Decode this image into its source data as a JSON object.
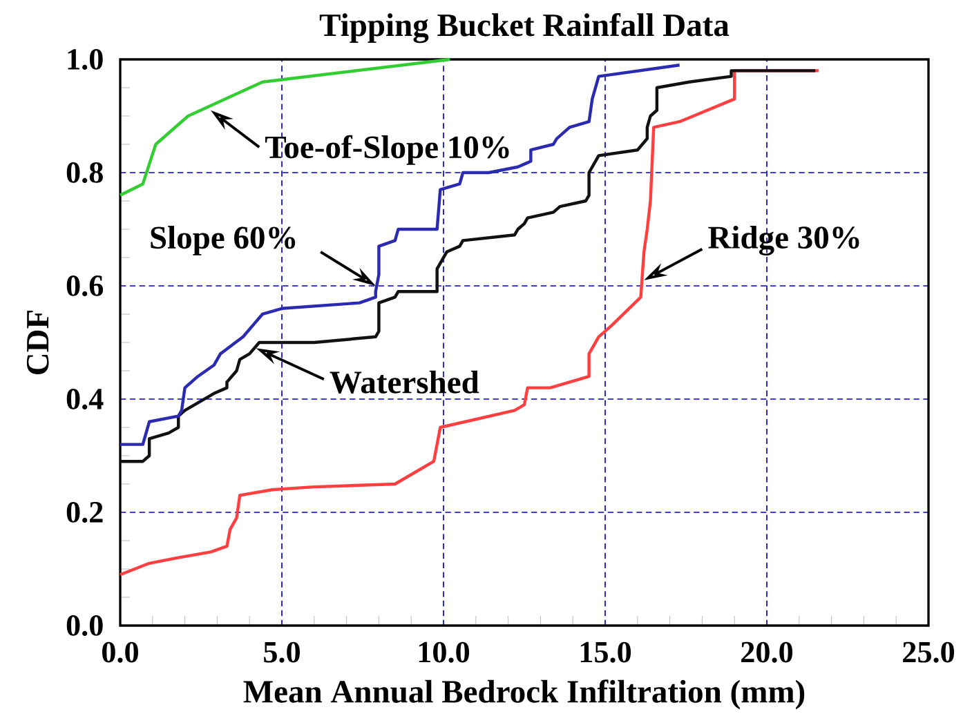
{
  "chart_data": {
    "type": "line",
    "title": "Tipping Bucket Rainfall Data",
    "xlabel": "Mean Annual Bedrock Infiltration (mm)",
    "ylabel": "CDF",
    "xlim": [
      0,
      25
    ],
    "ylim": [
      0,
      1
    ],
    "xticks": [
      {
        "value": 0,
        "label": "0.0"
      },
      {
        "value": 5,
        "label": "5.0"
      },
      {
        "value": 10,
        "label": "10.0"
      },
      {
        "value": 15,
        "label": "15.0"
      },
      {
        "value": 20,
        "label": "20.0"
      },
      {
        "value": 25,
        "label": "25.0"
      }
    ],
    "yticks": [
      {
        "value": 0,
        "label": "0.0"
      },
      {
        "value": 0.2,
        "label": "0.2"
      },
      {
        "value": 0.4,
        "label": "0.4"
      },
      {
        "value": 0.6,
        "label": "0.6"
      },
      {
        "value": 0.8,
        "label": "0.8"
      },
      {
        "value": 1,
        "label": "1.0"
      }
    ],
    "grid": true,
    "marker": "none",
    "line_style": "solid",
    "series": [
      {
        "color": "#33cc33",
        "x": [
          0,
          0.7,
          1.1,
          2.1,
          4.4,
          10.2
        ],
        "values": [
          0.76,
          0.78,
          0.85,
          0.9,
          0.96,
          1.0
        ]
      },
      {
        "color": "#2b2bb0",
        "x": [
          0,
          0.7,
          0.9,
          1.8,
          1.9,
          2.0,
          2.4,
          2.9,
          3.1,
          3.8,
          4.1,
          4.4,
          5.0,
          7.4,
          7.9,
          7.9,
          8.0,
          8.0,
          8.5,
          8.6,
          9.8,
          9.9,
          10.5,
          10.6,
          11.4,
          12.3,
          12.7,
          12.7,
          13.4,
          13.5,
          13.9,
          14.5,
          14.6,
          14.8,
          17.3
        ],
        "values": [
          0.32,
          0.32,
          0.36,
          0.37,
          0.38,
          0.42,
          0.44,
          0.46,
          0.48,
          0.51,
          0.53,
          0.55,
          0.56,
          0.57,
          0.58,
          0.59,
          0.62,
          0.67,
          0.68,
          0.7,
          0.7,
          0.77,
          0.78,
          0.8,
          0.8,
          0.81,
          0.82,
          0.84,
          0.85,
          0.86,
          0.88,
          0.89,
          0.93,
          0.97,
          0.99
        ]
      },
      {
        "color": "#111111",
        "x": [
          0,
          0.7,
          0.9,
          0.9,
          1.5,
          1.8,
          1.8,
          2.0,
          2.9,
          3.3,
          3.3,
          3.6,
          3.7,
          4.0,
          4.3,
          4.6,
          6.0,
          7.9,
          8.0,
          8.0,
          8.5,
          8.6,
          9.8,
          9.8,
          10.1,
          10.5,
          10.6,
          12.2,
          12.3,
          12.5,
          12.6,
          13.4,
          13.6,
          14.4,
          14.5,
          14.5,
          14.7,
          14.8,
          16.0,
          16.3,
          16.3,
          16.4,
          16.6,
          16.6,
          17.6,
          18.9,
          18.9,
          21.5
        ],
        "values": [
          0.29,
          0.29,
          0.3,
          0.33,
          0.34,
          0.35,
          0.37,
          0.38,
          0.41,
          0.42,
          0.43,
          0.45,
          0.47,
          0.48,
          0.5,
          0.5,
          0.5,
          0.51,
          0.52,
          0.57,
          0.58,
          0.59,
          0.59,
          0.63,
          0.66,
          0.67,
          0.68,
          0.69,
          0.7,
          0.71,
          0.72,
          0.73,
          0.74,
          0.75,
          0.76,
          0.8,
          0.82,
          0.83,
          0.84,
          0.86,
          0.88,
          0.9,
          0.91,
          0.95,
          0.96,
          0.97,
          0.98,
          0.98
        ]
      },
      {
        "color": "#ff4040",
        "x": [
          0,
          0.9,
          1.8,
          2.8,
          3.3,
          3.4,
          3.6,
          3.7,
          4.7,
          6.0,
          8.5,
          9.7,
          9.9,
          12.2,
          12.5,
          12.6,
          13.3,
          14.5,
          14.5,
          14.8,
          15.2,
          16.1,
          16.2,
          16.3,
          16.4,
          16.5,
          17.3,
          19.0,
          19.0,
          21.6
        ],
        "values": [
          0.09,
          0.11,
          0.12,
          0.13,
          0.14,
          0.17,
          0.19,
          0.23,
          0.24,
          0.245,
          0.25,
          0.29,
          0.35,
          0.38,
          0.39,
          0.42,
          0.42,
          0.44,
          0.48,
          0.51,
          0.53,
          0.58,
          0.66,
          0.7,
          0.75,
          0.88,
          0.89,
          0.93,
          0.98,
          0.98
        ]
      }
    ],
    "annotations": [
      {
        "text": "Toe-of-Slope 10%",
        "x": 2.8,
        "y": 0.91
      },
      {
        "text": "Slope 60%",
        "x": 7.9,
        "y": 0.6
      },
      {
        "text": "Watershed",
        "x": 4.2,
        "y": 0.49
      },
      {
        "text": "Ridge 30%",
        "x": 16.2,
        "y": 0.61
      }
    ]
  }
}
